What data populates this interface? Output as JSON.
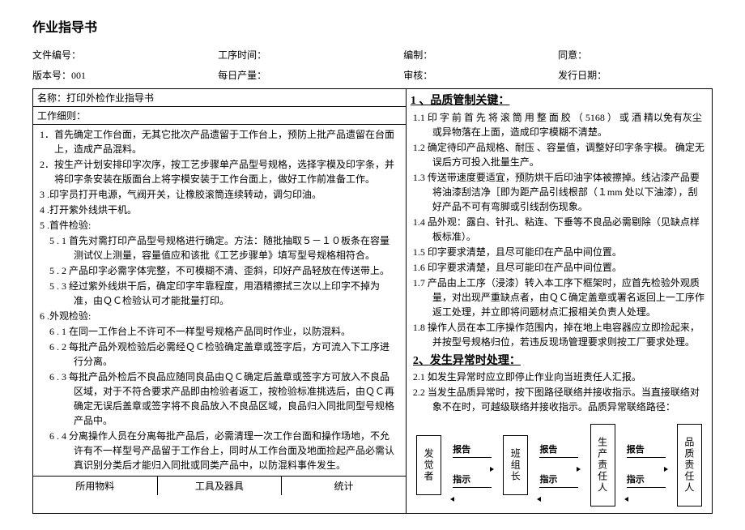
{
  "title": "作业指导书",
  "header1": {
    "c0": "文件编号：",
    "c1": "工序时间：",
    "c2": "编制：",
    "c3": "同意："
  },
  "header2": {
    "c0": "版本号：001",
    "c1": "每日产量：",
    "c2": "审核：",
    "c3": "发行日期："
  },
  "name": "名称：打印外检作业指导书",
  "subtitle": "工作细则：",
  "left_items": [
    "1．首先确定工作台面，无其它批次产品遗留于工作台上，预防上批产品遗留在台面上，造成产品混料。",
    "2．按生产计划安排印字次序，按工艺步骤单产品型号规格，选择字模及印字条，并将印字条安装在版面台上将字模安装于工作台面上，做好工作前准备工作。",
    "3 .印字员打开电源，气阀开关，让橡胶滚筒连续转动，调匀印油。",
    "4 .打开紫外线烘干机。",
    "5 .首件检验:",
    "5 . 1 首先对需打印产品型号规格进行确定。方法：随批抽取５－１０板条在容量测试仪上测量，容量值应和该批《工艺步骤单》填写型号规格相符合。",
    "5 . 2 产品印字必需字体完整，不可模糊不清、歪斜，印好产品轻放在传送带上。",
    "5 . 3 经过紫外线烘干后，确定印字牢靠程度，用酒精擦拭三次以上印字不掉为准，由ＱＣ检验认可才能批量打印。",
    "6 .外观检验:",
    "6 . 1 在同一工作台上不许可不一样型号规格产品同时作业，以防混料。",
    "6 . 2 每批产品外观检验后必需经ＱＣ检验确定盖章或签字后，方可流入下工序进行分离。",
    "6 . 3 每批产品外检后不良品应随同良品由ＱＣ确定后盖章或签字方可放入不良品区域，对于不符合要求产品即由检验者返工，按检验标准挑选后，由ＱＣ再确定无误后盖章或签字将不良品放入不良品区域，良品归入同批同型号规格产品中。",
    "6 . 4 分离操作人员在分离每批产品后，必需清理一次工作台面和操作场地，不允许有不一样型号产品留于工作台上，同时从工作台面及地面捡起产品必需认真识别分类后才能归入同批或同类产品中，以防混料事件发生。"
  ],
  "bottom": {
    "c0": "所用物料",
    "c1": "工具及器具",
    "c2": "统计"
  },
  "right_heading1": "1 、品质管制关键：",
  "right_items1": [
    "1.1 印 字 前 首 先 将 滚 筒 用 整 面 胶 （ 5168 ） 或 酒 精以免有灰尘或异物落在上面，造成印字模糊不清楚。",
    "1.2 确定待印产品规格、耐压 、容量值，调整好印字条字模。 确定无误后方可投入批量生产。",
    "1.3 传送带速度要适宜，预防烘干后印油字体被擦掉。线沾漆产品要将油漆刮洁净［即为距产品引线根部（１mm 处以下油漆），刮好产品不可有弯脚或引线刮伤现象。",
    "1.4 品外观：露白、针孔、粘连、下垂等不良品必需剔除（见缺点样板标准）。",
    "1.5 印字要求清楚，且尽可能印在产品中间位置。",
    "1.6 印字要求清楚，且尽可能印在产品中间位置。",
    "1.7 产品由上工序（浸漆）转入本工序下框架时，应首先检验外观质量，对出现严重缺点者，由ＱＣ确定盖章或署名返回上一工序作返工处理，并立即将问题材点汇报相关负责人处理。",
    "1.8 操作人员在本工序操作范围内，掉在地上电容器应立即捡起来，并按型号规格归位，若违反现场管理要求则按工厂要求处理。"
  ],
  "right_heading2": "2、发生异常时处理：",
  "right_items2": [
    "2.1 如发生异常时应立即停止作业向当班责任人汇报。",
    "2.2 当发生品质异常时，按下图路径联络并接收指示。当直接联络对象不在时，可越级联络并接收指示。品质异常联络路径："
  ],
  "flow": {
    "box1": "发觉者",
    "box2": "班组长",
    "box3": "生产责任人",
    "box4": "品质责任人",
    "label_report": "报告",
    "label_instruct": "指示"
  }
}
